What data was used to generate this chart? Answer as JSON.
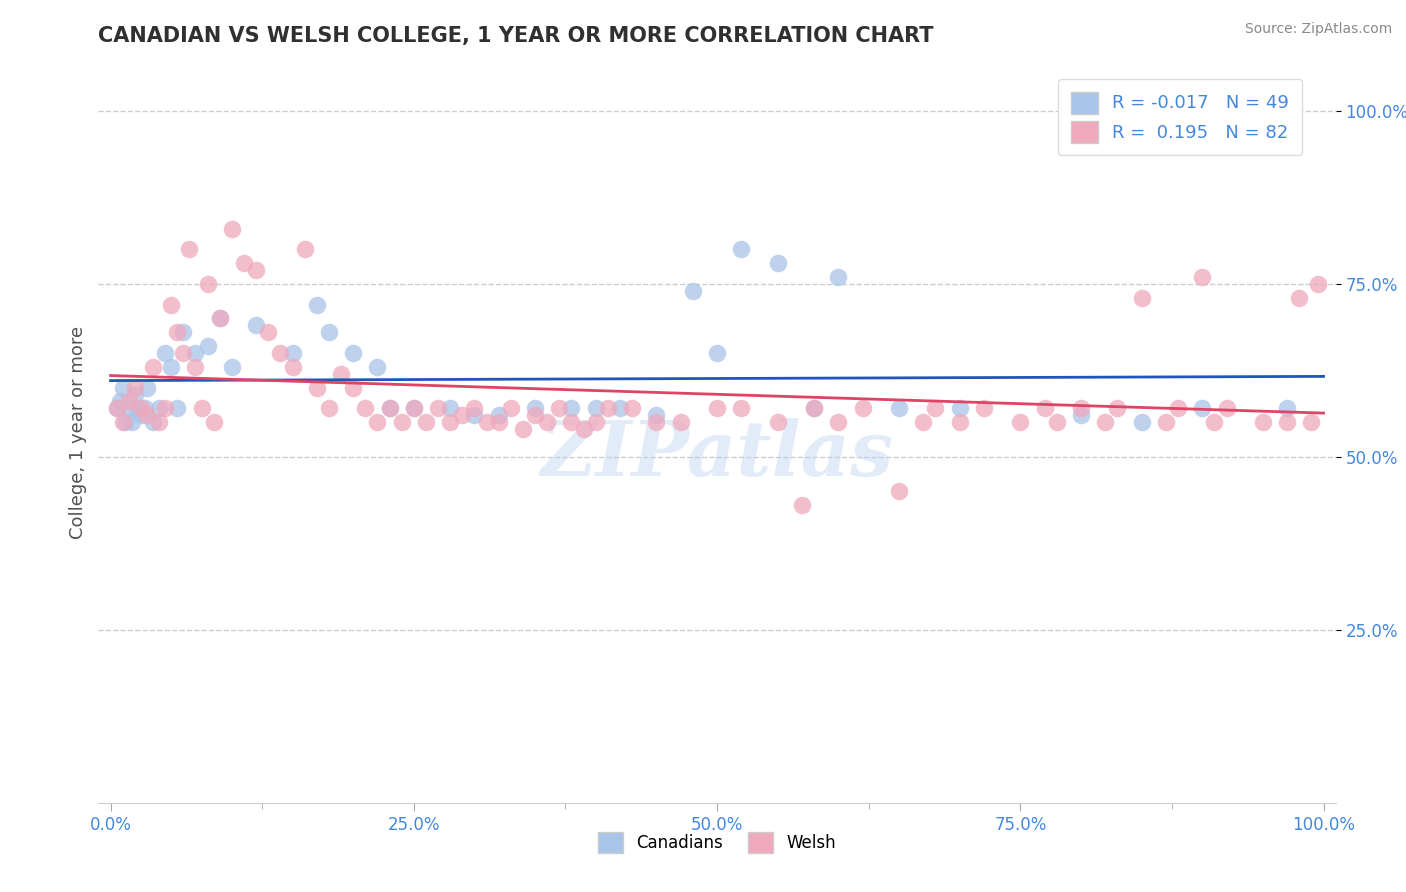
{
  "title": "CANADIAN VS WELSH COLLEGE, 1 YEAR OR MORE CORRELATION CHART",
  "source_text": "Source: ZipAtlas.com",
  "ylabel": "College, 1 year or more",
  "legend_labels": [
    "Canadians",
    "Welsh"
  ],
  "legend_r": [
    -0.017,
    0.195
  ],
  "legend_n": [
    49,
    82
  ],
  "blue_color": "#a8c4e8",
  "pink_color": "#f0a8bc",
  "blue_line_color": "#2255bb",
  "pink_line_color": "#dd4466",
  "title_color": "#303030",
  "axis_label_color": "#505050",
  "tick_color": "#4488dd",
  "grid_color": "#cccccc",
  "background_color": "#ffffff",
  "blue_points": [
    [
      0.5,
      57.0
    ],
    [
      0.8,
      58.0
    ],
    [
      1.0,
      60.0
    ],
    [
      1.2,
      55.0
    ],
    [
      1.5,
      57.0
    ],
    [
      1.8,
      55.0
    ],
    [
      2.0,
      59.0
    ],
    [
      2.2,
      57.0
    ],
    [
      2.5,
      56.0
    ],
    [
      2.8,
      57.0
    ],
    [
      3.0,
      60.0
    ],
    [
      3.5,
      55.0
    ],
    [
      4.0,
      57.0
    ],
    [
      4.5,
      65.0
    ],
    [
      5.0,
      63.0
    ],
    [
      5.5,
      57.0
    ],
    [
      6.0,
      68.0
    ],
    [
      7.0,
      65.0
    ],
    [
      8.0,
      66.0
    ],
    [
      9.0,
      70.0
    ],
    [
      10.0,
      63.0
    ],
    [
      12.0,
      69.0
    ],
    [
      15.0,
      65.0
    ],
    [
      17.0,
      72.0
    ],
    [
      18.0,
      68.0
    ],
    [
      20.0,
      65.0
    ],
    [
      22.0,
      63.0
    ],
    [
      23.0,
      57.0
    ],
    [
      25.0,
      57.0
    ],
    [
      28.0,
      57.0
    ],
    [
      30.0,
      56.0
    ],
    [
      32.0,
      56.0
    ],
    [
      35.0,
      57.0
    ],
    [
      38.0,
      57.0
    ],
    [
      40.0,
      57.0
    ],
    [
      42.0,
      57.0
    ],
    [
      45.0,
      56.0
    ],
    [
      48.0,
      74.0
    ],
    [
      50.0,
      65.0
    ],
    [
      52.0,
      80.0
    ],
    [
      55.0,
      78.0
    ],
    [
      58.0,
      57.0
    ],
    [
      60.0,
      76.0
    ],
    [
      65.0,
      57.0
    ],
    [
      70.0,
      57.0
    ],
    [
      80.0,
      56.0
    ],
    [
      85.0,
      55.0
    ],
    [
      90.0,
      57.0
    ],
    [
      97.0,
      57.0
    ]
  ],
  "pink_points": [
    [
      0.5,
      57.0
    ],
    [
      1.0,
      55.0
    ],
    [
      1.5,
      58.0
    ],
    [
      2.0,
      60.0
    ],
    [
      2.5,
      57.0
    ],
    [
      3.0,
      56.0
    ],
    [
      3.5,
      63.0
    ],
    [
      4.0,
      55.0
    ],
    [
      4.5,
      57.0
    ],
    [
      5.0,
      72.0
    ],
    [
      5.5,
      68.0
    ],
    [
      6.0,
      65.0
    ],
    [
      6.5,
      80.0
    ],
    [
      7.0,
      63.0
    ],
    [
      7.5,
      57.0
    ],
    [
      8.0,
      75.0
    ],
    [
      8.5,
      55.0
    ],
    [
      9.0,
      70.0
    ],
    [
      10.0,
      83.0
    ],
    [
      11.0,
      78.0
    ],
    [
      12.0,
      77.0
    ],
    [
      13.0,
      68.0
    ],
    [
      14.0,
      65.0
    ],
    [
      15.0,
      63.0
    ],
    [
      16.0,
      80.0
    ],
    [
      17.0,
      60.0
    ],
    [
      18.0,
      57.0
    ],
    [
      19.0,
      62.0
    ],
    [
      20.0,
      60.0
    ],
    [
      21.0,
      57.0
    ],
    [
      22.0,
      55.0
    ],
    [
      23.0,
      57.0
    ],
    [
      24.0,
      55.0
    ],
    [
      25.0,
      57.0
    ],
    [
      26.0,
      55.0
    ],
    [
      27.0,
      57.0
    ],
    [
      28.0,
      55.0
    ],
    [
      29.0,
      56.0
    ],
    [
      30.0,
      57.0
    ],
    [
      31.0,
      55.0
    ],
    [
      32.0,
      55.0
    ],
    [
      33.0,
      57.0
    ],
    [
      34.0,
      54.0
    ],
    [
      35.0,
      56.0
    ],
    [
      36.0,
      55.0
    ],
    [
      37.0,
      57.0
    ],
    [
      38.0,
      55.0
    ],
    [
      39.0,
      54.0
    ],
    [
      40.0,
      55.0
    ],
    [
      41.0,
      57.0
    ],
    [
      43.0,
      57.0
    ],
    [
      45.0,
      55.0
    ],
    [
      47.0,
      55.0
    ],
    [
      50.0,
      57.0
    ],
    [
      52.0,
      57.0
    ],
    [
      55.0,
      55.0
    ],
    [
      57.0,
      43.0
    ],
    [
      58.0,
      57.0
    ],
    [
      60.0,
      55.0
    ],
    [
      62.0,
      57.0
    ],
    [
      65.0,
      45.0
    ],
    [
      67.0,
      55.0
    ],
    [
      68.0,
      57.0
    ],
    [
      70.0,
      55.0
    ],
    [
      72.0,
      57.0
    ],
    [
      75.0,
      55.0
    ],
    [
      77.0,
      57.0
    ],
    [
      78.0,
      55.0
    ],
    [
      80.0,
      57.0
    ],
    [
      82.0,
      55.0
    ],
    [
      83.0,
      57.0
    ],
    [
      85.0,
      73.0
    ],
    [
      87.0,
      55.0
    ],
    [
      88.0,
      57.0
    ],
    [
      90.0,
      76.0
    ],
    [
      91.0,
      55.0
    ],
    [
      92.0,
      57.0
    ],
    [
      95.0,
      55.0
    ],
    [
      97.0,
      55.0
    ],
    [
      98.0,
      73.0
    ],
    [
      99.0,
      55.0
    ],
    [
      99.5,
      75.0
    ]
  ],
  "xlim": [
    -1,
    101
  ],
  "ylim": [
    0,
    107
  ],
  "xticks": [
    0,
    25,
    50,
    75,
    100
  ],
  "yticks": [
    25,
    50,
    75,
    100
  ],
  "xticklabels": [
    "0.0%",
    "25.0%",
    "50.0%",
    "75.0%",
    "100.0%"
  ],
  "yticklabels": [
    "25.0%",
    "50.0%",
    "75.0%",
    "100.0%"
  ],
  "watermark": "ZIPatlas"
}
